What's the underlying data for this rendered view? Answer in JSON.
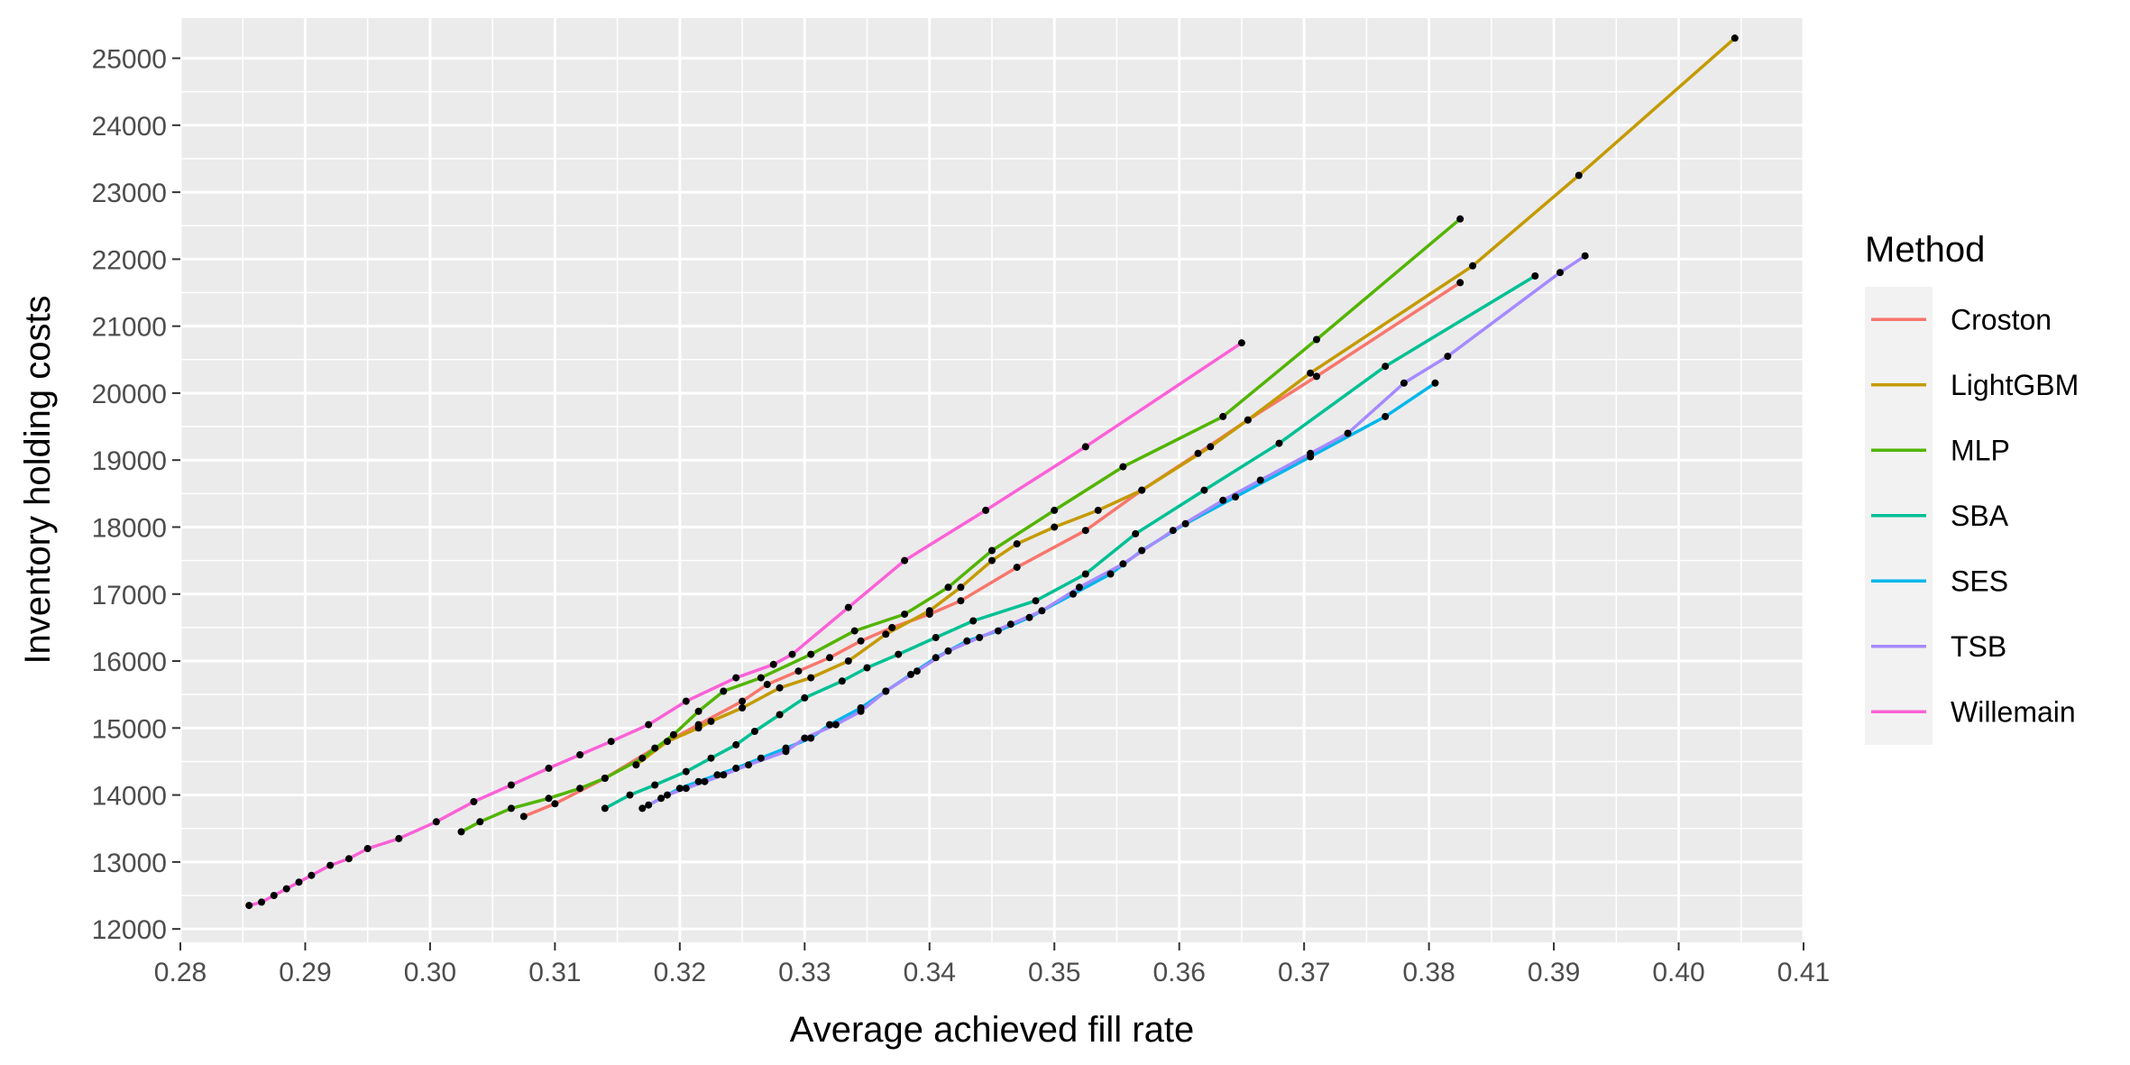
{
  "chart_data": {
    "type": "line",
    "title": "",
    "xlabel": "Average achieved fill rate",
    "ylabel": "Inventory holding costs",
    "xlim": [
      0.28,
      0.41
    ],
    "ylim": [
      11800,
      25600
    ],
    "x_ticks": [
      "0.28",
      "0.29",
      "0.30",
      "0.31",
      "0.32",
      "0.33",
      "0.34",
      "0.35",
      "0.36",
      "0.37",
      "0.38",
      "0.39",
      "0.40",
      "0.41"
    ],
    "y_ticks": [
      "12000",
      "13000",
      "14000",
      "15000",
      "16000",
      "17000",
      "18000",
      "19000",
      "20000",
      "21000",
      "22000",
      "23000",
      "24000",
      "25000"
    ],
    "grid": true,
    "panel_background": "#EBEBEB",
    "legend": {
      "title": "Method",
      "position": "right"
    },
    "point_color": "#000000",
    "series": [
      {
        "name": "Croston",
        "color": "#F8766D",
        "points": [
          [
            0.3075,
            13680
          ],
          [
            0.31,
            13870
          ],
          [
            0.314,
            14250
          ],
          [
            0.318,
            14700
          ],
          [
            0.3215,
            15050
          ],
          [
            0.325,
            15400
          ],
          [
            0.327,
            15650
          ],
          [
            0.3295,
            15850
          ],
          [
            0.332,
            16050
          ],
          [
            0.3345,
            16300
          ],
          [
            0.337,
            16500
          ],
          [
            0.34,
            16700
          ],
          [
            0.3425,
            16900
          ],
          [
            0.347,
            17400
          ],
          [
            0.3525,
            17950
          ],
          [
            0.357,
            18550
          ],
          [
            0.3615,
            19100
          ],
          [
            0.3655,
            19600
          ],
          [
            0.371,
            20250
          ],
          [
            0.3825,
            21650
          ]
        ]
      },
      {
        "name": "LightGBM",
        "color": "#C49A00",
        "points": [
          [
            0.3165,
            14450
          ],
          [
            0.319,
            14800
          ],
          [
            0.3215,
            15000
          ],
          [
            0.3225,
            15100
          ],
          [
            0.325,
            15300
          ],
          [
            0.328,
            15600
          ],
          [
            0.3305,
            15750
          ],
          [
            0.3335,
            16000
          ],
          [
            0.3365,
            16400
          ],
          [
            0.34,
            16750
          ],
          [
            0.3425,
            17100
          ],
          [
            0.345,
            17500
          ],
          [
            0.347,
            17750
          ],
          [
            0.35,
            18000
          ],
          [
            0.3535,
            18250
          ],
          [
            0.357,
            18550
          ],
          [
            0.3625,
            19200
          ],
          [
            0.3655,
            19600
          ],
          [
            0.3705,
            20300
          ],
          [
            0.3835,
            21900
          ],
          [
            0.392,
            23250
          ],
          [
            0.4045,
            25300
          ]
        ]
      },
      {
        "name": "MLP",
        "color": "#53B400",
        "points": [
          [
            0.3025,
            13450
          ],
          [
            0.304,
            13600
          ],
          [
            0.3065,
            13800
          ],
          [
            0.3095,
            13950
          ],
          [
            0.312,
            14100
          ],
          [
            0.314,
            14250
          ],
          [
            0.317,
            14550
          ],
          [
            0.3195,
            14900
          ],
          [
            0.3215,
            15250
          ],
          [
            0.3235,
            15550
          ],
          [
            0.3265,
            15750
          ],
          [
            0.3305,
            16100
          ],
          [
            0.334,
            16450
          ],
          [
            0.338,
            16700
          ],
          [
            0.3415,
            17100
          ],
          [
            0.345,
            17650
          ],
          [
            0.35,
            18250
          ],
          [
            0.3555,
            18900
          ],
          [
            0.3635,
            19650
          ],
          [
            0.371,
            20800
          ],
          [
            0.3825,
            22600
          ]
        ]
      },
      {
        "name": "SBA",
        "color": "#00C094",
        "points": [
          [
            0.314,
            13800
          ],
          [
            0.316,
            14000
          ],
          [
            0.318,
            14150
          ],
          [
            0.3205,
            14350
          ],
          [
            0.3225,
            14550
          ],
          [
            0.3245,
            14750
          ],
          [
            0.326,
            14950
          ],
          [
            0.328,
            15200
          ],
          [
            0.33,
            15450
          ],
          [
            0.333,
            15700
          ],
          [
            0.335,
            15900
          ],
          [
            0.3375,
            16100
          ],
          [
            0.3405,
            16350
          ],
          [
            0.3435,
            16600
          ],
          [
            0.3485,
            16900
          ],
          [
            0.3525,
            17300
          ],
          [
            0.3565,
            17900
          ],
          [
            0.362,
            18550
          ],
          [
            0.368,
            19250
          ],
          [
            0.3765,
            20400
          ],
          [
            0.3885,
            21750
          ]
        ]
      },
      {
        "name": "SES",
        "color": "#00B6EB",
        "points": [
          [
            0.317,
            13800
          ],
          [
            0.3185,
            13950
          ],
          [
            0.32,
            14100
          ],
          [
            0.3215,
            14200
          ],
          [
            0.323,
            14300
          ],
          [
            0.3245,
            14400
          ],
          [
            0.3265,
            14550
          ],
          [
            0.3285,
            14700
          ],
          [
            0.3305,
            14850
          ],
          [
            0.332,
            15050
          ],
          [
            0.3345,
            15300
          ],
          [
            0.3365,
            15550
          ],
          [
            0.3385,
            15800
          ],
          [
            0.3405,
            16050
          ],
          [
            0.343,
            16300
          ],
          [
            0.3455,
            16450
          ],
          [
            0.348,
            16650
          ],
          [
            0.3515,
            17000
          ],
          [
            0.3545,
            17300
          ],
          [
            0.357,
            17650
          ],
          [
            0.3605,
            18050
          ],
          [
            0.3645,
            18450
          ],
          [
            0.3705,
            19050
          ],
          [
            0.3765,
            19650
          ],
          [
            0.3805,
            20150
          ]
        ]
      },
      {
        "name": "TSB",
        "color": "#A58AFF",
        "points": [
          [
            0.3175,
            13850
          ],
          [
            0.319,
            14000
          ],
          [
            0.3205,
            14100
          ],
          [
            0.322,
            14200
          ],
          [
            0.3235,
            14300
          ],
          [
            0.3255,
            14450
          ],
          [
            0.3285,
            14650
          ],
          [
            0.33,
            14850
          ],
          [
            0.3325,
            15050
          ],
          [
            0.3345,
            15250
          ],
          [
            0.3365,
            15550
          ],
          [
            0.339,
            15850
          ],
          [
            0.3415,
            16150
          ],
          [
            0.344,
            16350
          ],
          [
            0.3465,
            16550
          ],
          [
            0.349,
            16750
          ],
          [
            0.352,
            17100
          ],
          [
            0.3555,
            17450
          ],
          [
            0.3595,
            17950
          ],
          [
            0.3635,
            18400
          ],
          [
            0.3665,
            18700
          ],
          [
            0.3705,
            19100
          ],
          [
            0.3735,
            19400
          ],
          [
            0.378,
            20150
          ],
          [
            0.3815,
            20550
          ],
          [
            0.3905,
            21800
          ],
          [
            0.3925,
            22050
          ]
        ]
      },
      {
        "name": "Willemain",
        "color": "#FB61D7",
        "points": [
          [
            0.2855,
            12350
          ],
          [
            0.2865,
            12400
          ],
          [
            0.2875,
            12500
          ],
          [
            0.2885,
            12600
          ],
          [
            0.2895,
            12700
          ],
          [
            0.2905,
            12800
          ],
          [
            0.292,
            12950
          ],
          [
            0.2935,
            13050
          ],
          [
            0.295,
            13200
          ],
          [
            0.2975,
            13350
          ],
          [
            0.3005,
            13600
          ],
          [
            0.3035,
            13900
          ],
          [
            0.3065,
            14150
          ],
          [
            0.3095,
            14400
          ],
          [
            0.312,
            14600
          ],
          [
            0.3145,
            14800
          ],
          [
            0.3175,
            15050
          ],
          [
            0.3205,
            15400
          ],
          [
            0.3245,
            15750
          ],
          [
            0.3275,
            15950
          ],
          [
            0.329,
            16100
          ],
          [
            0.3335,
            16800
          ],
          [
            0.338,
            17500
          ],
          [
            0.3445,
            18250
          ],
          [
            0.3525,
            19200
          ],
          [
            0.365,
            20750
          ]
        ]
      }
    ]
  }
}
